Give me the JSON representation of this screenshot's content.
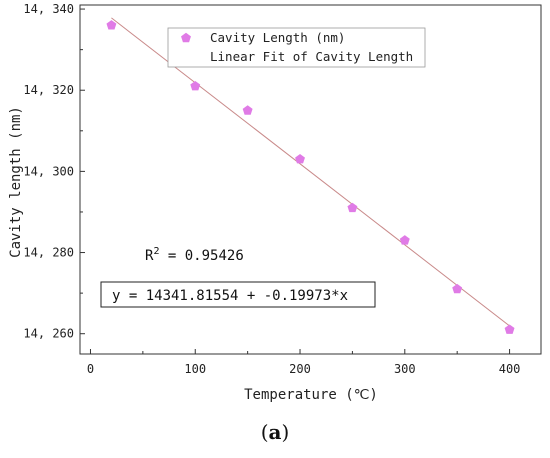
{
  "chart_data": {
    "type": "scatter",
    "xlabel": "Temperature (℃)",
    "ylabel": "Cavity length (nm)",
    "xlim": [
      -10,
      430
    ],
    "ylim": [
      14255,
      14341
    ],
    "x_ticks": [
      0,
      100,
      200,
      300,
      400
    ],
    "x_tick_labels": [
      "0",
      "100",
      "200",
      "300",
      "400"
    ],
    "y_ticks": [
      14260,
      14280,
      14300,
      14320,
      14340
    ],
    "y_tick_labels": [
      "14, 260",
      "14, 280",
      "14, 300",
      "14, 320",
      "14, 340"
    ],
    "grid": false,
    "legend_position": "top",
    "series": [
      {
        "name": "Cavity Length (nm)",
        "marker": "pentagon",
        "color": "#e07be6",
        "x": [
          20,
          100,
          150,
          200,
          250,
          300,
          350,
          400
        ],
        "y": [
          14336,
          14321,
          14315,
          14303,
          14291,
          14283,
          14271,
          14261
        ]
      }
    ],
    "fit": {
      "name": "Linear Fit of Cavity Length",
      "color": "#c98a8a",
      "intercept": 14341.81554,
      "slope": -0.19973,
      "x_range": [
        20,
        400
      ]
    },
    "annotations": {
      "r_squared_label": "R",
      "r_squared_sup": "2",
      "r_squared_value": " = 0.95426",
      "equation": "y = 14341.81554 + -0.19973*x"
    }
  },
  "caption": {
    "open": "(",
    "letter": "a",
    "close": ")"
  }
}
